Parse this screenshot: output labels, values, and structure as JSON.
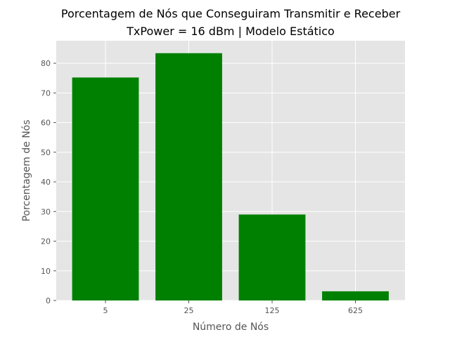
{
  "chart_data": {
    "type": "bar",
    "title": "Porcentagem de Nós que Conseguiram Transmitir e Receber",
    "subtitle": "TxPower = 16 dBm | Modelo Estático",
    "xlabel": "Número de Nós",
    "ylabel": "Porcentagem de Nós",
    "categories": [
      "5",
      "25",
      "125",
      "625"
    ],
    "values": [
      75.2,
      83.4,
      29.0,
      3.1
    ],
    "ylim": [
      0,
      87.6
    ],
    "yticks": [
      "0",
      "10",
      "20",
      "30",
      "40",
      "50",
      "60",
      "70",
      "80"
    ],
    "grid": true,
    "colors": {
      "bar": "#008000",
      "plot_background": "#e5e5e5",
      "grid": "#ffffff"
    }
  }
}
